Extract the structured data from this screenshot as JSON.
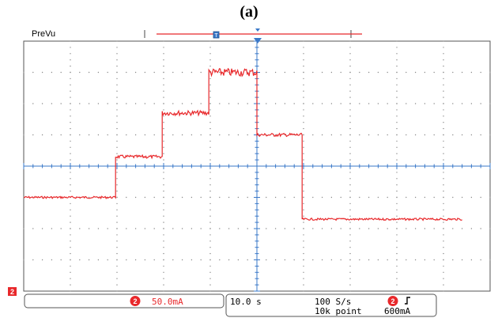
{
  "figure_label": "(a)",
  "header": {
    "mode_label": "PreVu"
  },
  "scope": {
    "channel": "2",
    "vertical_scale": "50.0mA",
    "time_scale": "10.0 s",
    "sample_rate": "100 S/s",
    "record_length": "10k point",
    "trigger_level": "600mA",
    "trace_color": "#e8282b",
    "channel_color": "#e8282b",
    "grid_color": "#8a8a8a",
    "axis_color": "#3a78c8"
  },
  "chart_data": {
    "type": "line",
    "title": "",
    "xlabel": "",
    "ylabel": "",
    "x_unit": "div",
    "y_unit": "div",
    "xlim": [
      0,
      10
    ],
    "ylim": [
      -4,
      4
    ],
    "grid": true,
    "series": [
      {
        "x": [
          0,
          1.97,
          1.97,
          2.97,
          2.97,
          3.97,
          3.97,
          5.0,
          5.0,
          5.97,
          5.97,
          9.4
        ],
        "y": [
          -1.0,
          -1.0,
          0.3,
          0.3,
          1.7,
          1.7,
          3.0,
          3.0,
          1.0,
          1.0,
          -1.7,
          -1.7
        ]
      }
    ]
  }
}
